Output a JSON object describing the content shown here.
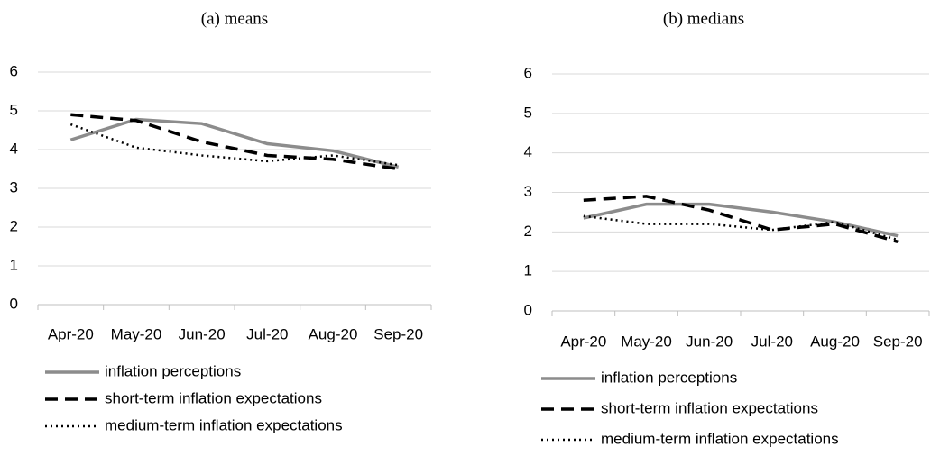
{
  "chart_data": [
    {
      "type": "line",
      "title": "(a) means",
      "categories": [
        "Apr-20",
        "May-20",
        "Jun-20",
        "Jul-20",
        "Aug-20",
        "Sep-20"
      ],
      "ylim": [
        0,
        6
      ],
      "yticks": [
        0,
        1,
        2,
        3,
        4,
        5,
        6
      ],
      "grid": true,
      "legend": "bottom",
      "series": [
        {
          "name": "inflation perceptions",
          "color": "#8c8c8c",
          "line_style": "solid",
          "values": [
            4.25,
            4.78,
            4.67,
            4.15,
            3.97,
            3.55
          ]
        },
        {
          "name": "short-term inflation expectations",
          "color": "#000000",
          "line_style": "dashed",
          "values": [
            4.9,
            4.75,
            4.2,
            3.85,
            3.75,
            3.5
          ]
        },
        {
          "name": "medium-term inflation expectations",
          "color": "#000000",
          "line_style": "dotted",
          "values": [
            4.65,
            4.05,
            3.85,
            3.7,
            3.85,
            3.6
          ]
        }
      ]
    },
    {
      "type": "line",
      "title": "(b) medians",
      "categories": [
        "Apr-20",
        "May-20",
        "Jun-20",
        "Jul-20",
        "Aug-20",
        "Sep-20"
      ],
      "ylim": [
        0,
        6
      ],
      "yticks": [
        0,
        1,
        2,
        3,
        4,
        5,
        6
      ],
      "grid": true,
      "legend": "bottom",
      "series": [
        {
          "name": "inflation perceptions",
          "color": "#8c8c8c",
          "line_style": "solid",
          "values": [
            2.35,
            2.7,
            2.7,
            2.5,
            2.25,
            1.9
          ]
        },
        {
          "name": "short-term inflation expectations",
          "color": "#000000",
          "line_style": "dashed",
          "values": [
            2.8,
            2.9,
            2.55,
            2.05,
            2.2,
            1.75
          ]
        },
        {
          "name": "medium-term inflation expectations",
          "color": "#000000",
          "line_style": "dotted",
          "values": [
            2.4,
            2.2,
            2.2,
            2.05,
            2.25,
            1.8
          ]
        }
      ]
    }
  ]
}
